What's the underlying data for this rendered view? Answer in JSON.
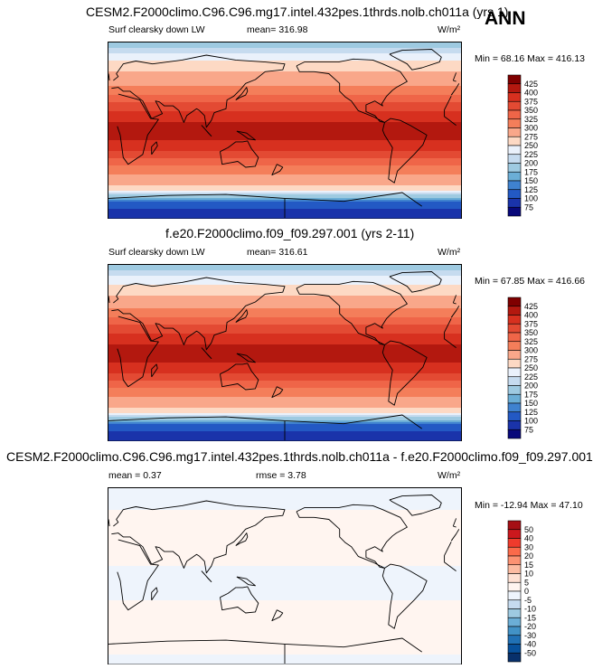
{
  "header": {
    "season": "ANN"
  },
  "panels": [
    {
      "title": "CESM2.F2000climo.C96.C96.mg17.intel.432pes.1thrds.nolb.ch011a (yrs 1)",
      "left_label": "Surf clearsky down LW",
      "center_label": "mean= 316.98",
      "units": "W/m²",
      "range_text": "Min =  68.16 Max = 416.13",
      "colorbar": {
        "labels": [
          "425",
          "400",
          "375",
          "350",
          "325",
          "300",
          "275",
          "250",
          "225",
          "200",
          "175",
          "150",
          "125",
          "100",
          "75"
        ],
        "colors": [
          "#7f0000",
          "#b3180f",
          "#d7301f",
          "#e34a33",
          "#ef6548",
          "#f47e5a",
          "#f9a78a",
          "#fdd9c4",
          "#eaf1fb",
          "#c6dbef",
          "#9ecae1",
          "#6baed6",
          "#3f82cf",
          "#2359c4",
          "#1a33aa",
          "#08087a"
        ]
      }
    },
    {
      "title": "f.e20.F2000climo.f09_f09.297.001 (yrs 2-11)",
      "left_label": "Surf clearsky down LW",
      "center_label": "mean= 316.61",
      "units": "W/m²",
      "range_text": "Min =  67.85 Max = 416.66",
      "colorbar": {
        "labels": [
          "425",
          "400",
          "375",
          "350",
          "325",
          "300",
          "275",
          "250",
          "225",
          "200",
          "175",
          "150",
          "125",
          "100",
          "75"
        ],
        "colors": [
          "#7f0000",
          "#b3180f",
          "#d7301f",
          "#e34a33",
          "#ef6548",
          "#f47e5a",
          "#f9a78a",
          "#fdd9c4",
          "#eaf1fb",
          "#c6dbef",
          "#9ecae1",
          "#6baed6",
          "#3f82cf",
          "#2359c4",
          "#1a33aa",
          "#08087a"
        ]
      }
    },
    {
      "title": "CESM2.F2000climo.C96.C96.mg17.intel.432pes.1thrds.nolb.ch011a - f.e20.F2000climo.f09_f09.297.001",
      "left_label": "mean =   0.37",
      "center_label": "rmse =   3.78",
      "units": "W/m²",
      "range_text": "Min = -12.94 Max =  47.10",
      "colorbar": {
        "labels": [
          "50",
          "40",
          "30",
          "20",
          "15",
          "10",
          "5",
          "0",
          "-5",
          "-10",
          "-15",
          "-20",
          "-30",
          "-40",
          "-50"
        ],
        "colors": [
          "#a50f15",
          "#cb181d",
          "#ef3b2c",
          "#fb6a4a",
          "#fc9272",
          "#fcbba1",
          "#fee0d2",
          "#fff5f0",
          "#eef4fc",
          "#c6dbef",
          "#9ecae1",
          "#6baed6",
          "#4292c6",
          "#2171b5",
          "#08519c",
          "#08306b"
        ]
      }
    }
  ],
  "chart_data": [
    {
      "type": "heatmap",
      "title": "CESM2.F2000climo.C96.C96.mg17.intel.432pes.1thrds.nolb.ch011a (yrs 1)",
      "variable": "Surf clearsky down LW",
      "units": "W/m2",
      "mean": 316.98,
      "min": 68.16,
      "max": 416.13,
      "projection": "global lat-lon, centered on 180",
      "zonal_profile": {
        "lat": [
          90,
          75,
          60,
          45,
          30,
          15,
          0,
          -15,
          -30,
          -45,
          -60,
          -75,
          -90
        ],
        "value": [
          180,
          240,
          275,
          300,
          345,
          390,
          410,
          395,
          345,
          300,
          265,
          115,
          80
        ]
      },
      "levels": [
        75,
        100,
        125,
        150,
        175,
        200,
        225,
        250,
        275,
        300,
        325,
        350,
        375,
        400,
        425
      ]
    },
    {
      "type": "heatmap",
      "title": "f.e20.F2000climo.f09_f09.297.001 (yrs 2-11)",
      "variable": "Surf clearsky down LW",
      "units": "W/m2",
      "mean": 316.61,
      "min": 67.85,
      "max": 416.66,
      "projection": "global lat-lon, centered on 180",
      "zonal_profile": {
        "lat": [
          90,
          75,
          60,
          45,
          30,
          15,
          0,
          -15,
          -30,
          -45,
          -60,
          -75,
          -90
        ],
        "value": [
          180,
          238,
          272,
          300,
          345,
          390,
          410,
          395,
          345,
          300,
          265,
          115,
          80
        ]
      },
      "levels": [
        75,
        100,
        125,
        150,
        175,
        200,
        225,
        250,
        275,
        300,
        325,
        350,
        375,
        400,
        425
      ]
    },
    {
      "type": "heatmap",
      "title": "CESM2.F2000climo.C96.C96.mg17.intel.432pes.1thrds.nolb.ch011a - f.e20.F2000climo.f09_f09.297.001",
      "mean": 0.37,
      "rmse": 3.78,
      "min": -12.94,
      "max": 47.1,
      "units": "W/m2",
      "zonal_profile": {
        "lat": [
          90,
          75,
          60,
          45,
          30,
          15,
          0,
          -15,
          -30,
          -45,
          -60,
          -75,
          -90
        ],
        "value": [
          -3,
          -2,
          2,
          1,
          3,
          1,
          -2,
          -2,
          1,
          2,
          0,
          1,
          -2
        ]
      },
      "levels": [
        -50,
        -40,
        -30,
        -20,
        -15,
        -10,
        -5,
        0,
        5,
        10,
        15,
        20,
        30,
        40,
        50
      ]
    }
  ]
}
